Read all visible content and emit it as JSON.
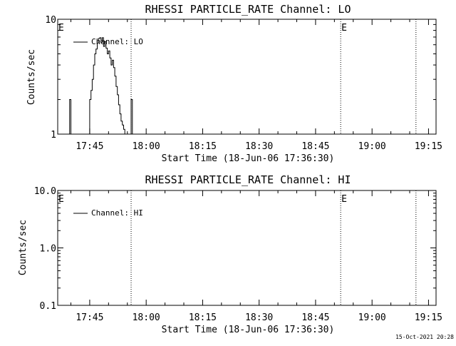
{
  "chart_data": [
    {
      "type": "line",
      "title": "RHESSI PARTICLE_RATE Channel: LO",
      "xlabel": "Start Time (18-Jun-06 17:36:30)",
      "ylabel": "Counts/sec",
      "yscale": "log",
      "ylim": [
        1,
        10
      ],
      "xlim": [
        "17:36:30",
        "19:17:00"
      ],
      "x_tick_labels": [
        "17:45",
        "18:00",
        "18:15",
        "18:30",
        "18:45",
        "19:00",
        "19:15"
      ],
      "y_tick_labels": [
        "1",
        "10"
      ],
      "legend": {
        "placement": "top-left",
        "entries": [
          "Channel: LO"
        ]
      },
      "event_markers": [
        {
          "label": "E",
          "time": "17:36:30"
        },
        {
          "label": "E",
          "time": "18:51:40"
        }
      ],
      "dotted_lines": [
        "17:56:00",
        "18:51:40",
        "19:11:40"
      ],
      "series": [
        {
          "name": "Channel: LO",
          "x": [
            "17:39:00",
            "17:39:20",
            "17:39:40",
            "17:40:00",
            "17:40:20",
            "17:40:40",
            "17:41:00",
            "17:41:20",
            "17:41:40",
            "17:42:00",
            "17:42:20",
            "17:42:40",
            "17:43:00",
            "17:43:20",
            "17:43:40",
            "17:44:00",
            "17:44:20",
            "17:44:40",
            "17:45:00",
            "17:45:20",
            "17:45:40",
            "17:46:00",
            "17:46:20",
            "17:46:40",
            "17:47:00",
            "17:47:20",
            "17:47:40",
            "17:48:00",
            "17:48:20",
            "17:48:40",
            "17:49:00",
            "17:49:20",
            "17:49:40",
            "17:50:00",
            "17:50:20",
            "17:50:40",
            "17:51:00",
            "17:51:20",
            "17:51:40",
            "17:52:00",
            "17:52:20",
            "17:52:40",
            "17:53:00",
            "17:53:20",
            "17:53:40",
            "17:54:00",
            "17:54:20",
            "17:54:40",
            "17:55:00",
            "17:55:20",
            "17:55:40",
            "17:56:00",
            "17:56:20"
          ],
          "y": [
            1.0,
            1.0,
            2.0,
            1.0,
            1.0,
            1.0,
            1.0,
            1.0,
            1.0,
            1.0,
            1.0,
            1.0,
            1.0,
            1.0,
            1.0,
            1.0,
            1.0,
            1.0,
            2.0,
            2.4,
            3.0,
            4.0,
            5.0,
            5.5,
            6.2,
            6.8,
            6.9,
            6.3,
            6.9,
            5.8,
            6.4,
            5.6,
            5.0,
            5.3,
            4.6,
            4.0,
            4.4,
            3.8,
            3.2,
            2.6,
            2.2,
            1.8,
            1.5,
            1.3,
            1.2,
            1.1,
            1.0,
            1.0,
            1.0,
            1.0,
            1.0,
            2.0,
            1.0
          ]
        }
      ]
    },
    {
      "type": "line",
      "title": "RHESSI PARTICLE_RATE Channel: HI",
      "xlabel": "Start Time (18-Jun-06 17:36:30)",
      "ylabel": "Counts/sec",
      "yscale": "log",
      "ylim": [
        0.1,
        10
      ],
      "xlim": [
        "17:36:30",
        "19:17:00"
      ],
      "x_tick_labels": [
        "17:45",
        "18:00",
        "18:15",
        "18:30",
        "18:45",
        "19:00",
        "19:15"
      ],
      "y_tick_labels": [
        "0.1",
        "1.0",
        "10.0"
      ],
      "legend": {
        "placement": "top-left",
        "entries": [
          "Channel: HI"
        ]
      },
      "event_markers": [
        {
          "label": "E",
          "time": "17:36:30"
        },
        {
          "label": "E",
          "time": "18:51:40"
        }
      ],
      "dotted_lines": [
        "17:56:00",
        "18:51:40",
        "19:11:40"
      ],
      "series": [
        {
          "name": "Channel: HI",
          "x": [],
          "y": []
        }
      ]
    }
  ],
  "timestamp": "15-Oct-2021 20:28"
}
